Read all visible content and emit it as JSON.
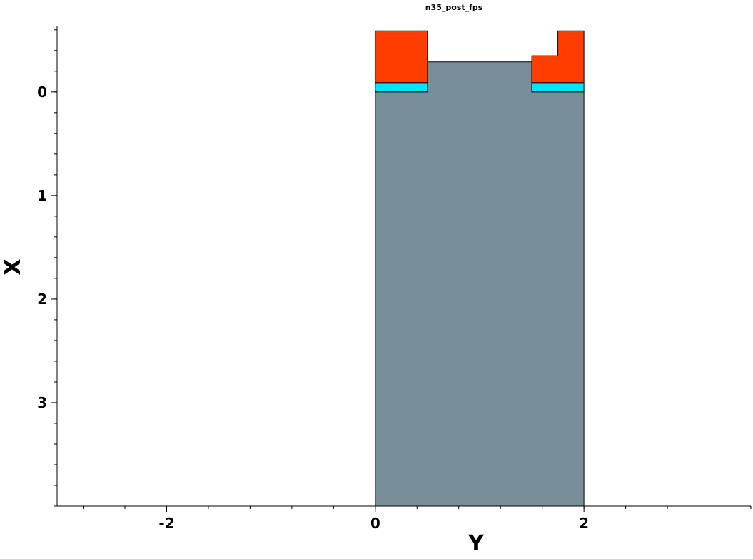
{
  "chart_data": {
    "type": "area",
    "title": "n35_post_fps",
    "xlabel": "Y",
    "ylabel": "X",
    "xlim": [
      -3.05,
      3.6
    ],
    "ylim": [
      4.0,
      -0.64
    ],
    "y_inverted": true,
    "x_ticks": [
      {
        "value": -2,
        "label": "-2"
      },
      {
        "value": 0,
        "label": "0"
      },
      {
        "value": 2,
        "label": "2"
      }
    ],
    "y_ticks": [
      {
        "value": 0,
        "label": "0"
      },
      {
        "value": 1,
        "label": "1"
      },
      {
        "value": 2,
        "label": "2"
      },
      {
        "value": 3,
        "label": "3"
      }
    ],
    "x_minor_step": 0.4,
    "y_minor_step": 0.2,
    "regions": [
      {
        "material": "substrate",
        "color": "#788f99",
        "points": [
          [
            0,
            4.0
          ],
          [
            0,
            0
          ],
          [
            0.5,
            0
          ],
          [
            0.5,
            -0.29
          ],
          [
            1.5,
            -0.29
          ],
          [
            1.5,
            0
          ],
          [
            2,
            0
          ],
          [
            2,
            4.0
          ]
        ]
      },
      {
        "material": "layer-cyan-left",
        "color": "#00e5ff",
        "points": [
          [
            0,
            0
          ],
          [
            0,
            -0.09
          ],
          [
            0.5,
            -0.09
          ],
          [
            0.5,
            0
          ]
        ]
      },
      {
        "material": "layer-cyan-right",
        "color": "#00e5ff",
        "points": [
          [
            1.5,
            0
          ],
          [
            1.5,
            -0.09
          ],
          [
            2,
            -0.09
          ],
          [
            2,
            0
          ]
        ]
      },
      {
        "material": "layer-red-left",
        "color": "#ff3d00",
        "points": [
          [
            0,
            -0.09
          ],
          [
            0,
            -0.59
          ],
          [
            0.5,
            -0.59
          ],
          [
            0.5,
            -0.09
          ]
        ]
      },
      {
        "material": "layer-red-right",
        "color": "#ff3d00",
        "points": [
          [
            1.5,
            -0.09
          ],
          [
            1.5,
            -0.35
          ],
          [
            1.75,
            -0.35
          ],
          [
            1.75,
            -0.59
          ],
          [
            2,
            -0.59
          ],
          [
            2,
            -0.09
          ]
        ]
      }
    ]
  }
}
